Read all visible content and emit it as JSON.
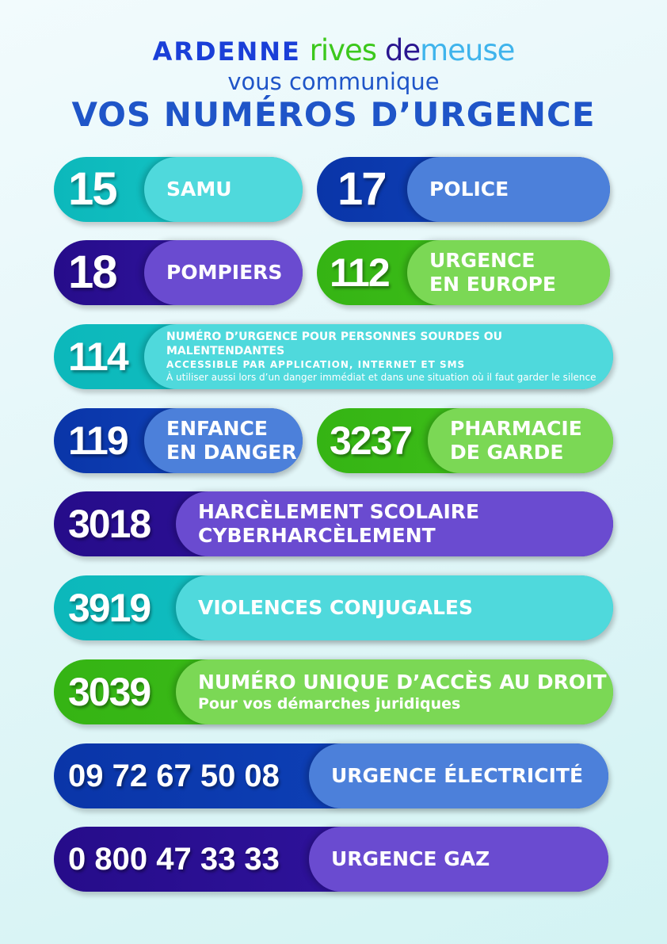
{
  "header": {
    "brand": [
      "ARDENNE",
      "rives",
      "de",
      "meuse"
    ],
    "subtitle": "vous communique",
    "title": "VOS NUMÉROS D’URGENCE"
  },
  "colors": {
    "teal": "#4fd9dc",
    "blue": "#4c80da",
    "purple": "#6a4bd0",
    "green": "#7bd855"
  },
  "numbers": [
    {
      "number": "15",
      "label": "SAMU"
    },
    {
      "number": "17",
      "label": "POLICE"
    },
    {
      "number": "18",
      "label": "POMPIERS"
    },
    {
      "number": "112",
      "label": [
        "URGENCE",
        "EN EUROPE"
      ]
    },
    {
      "number": "114",
      "label": [
        "NUMÉRO D’URGENCE POUR PERSONNES SOURDES OU MALENTENDANTES",
        "ACCESSIBLE PAR APPLICATION, INTERNET ET SMS",
        "À utiliser aussi lors d’un danger immédiat et dans une situation où il faut garder le silence"
      ]
    },
    {
      "number": "119",
      "label": [
        "ENFANCE",
        "EN DANGER"
      ]
    },
    {
      "number": "3237",
      "label": [
        "PHARMACIE",
        "DE GARDE"
      ]
    },
    {
      "number": "3018",
      "label": [
        "HARCÈLEMENT SCOLAIRE",
        "CYBERHARCÈLEMENT"
      ]
    },
    {
      "number": "3919",
      "label": "VIOLENCES CONJUGALES"
    },
    {
      "number": "3039",
      "label": [
        "NUMÉRO UNIQUE D’ACCÈS AU DROIT",
        "Pour vos démarches juridiques"
      ]
    },
    {
      "number": "09 72 67 50 08",
      "label": "URGENCE ÉLECTRICITÉ"
    },
    {
      "number": "0 800 47 33 33",
      "label": "URGENCE GAZ"
    }
  ]
}
